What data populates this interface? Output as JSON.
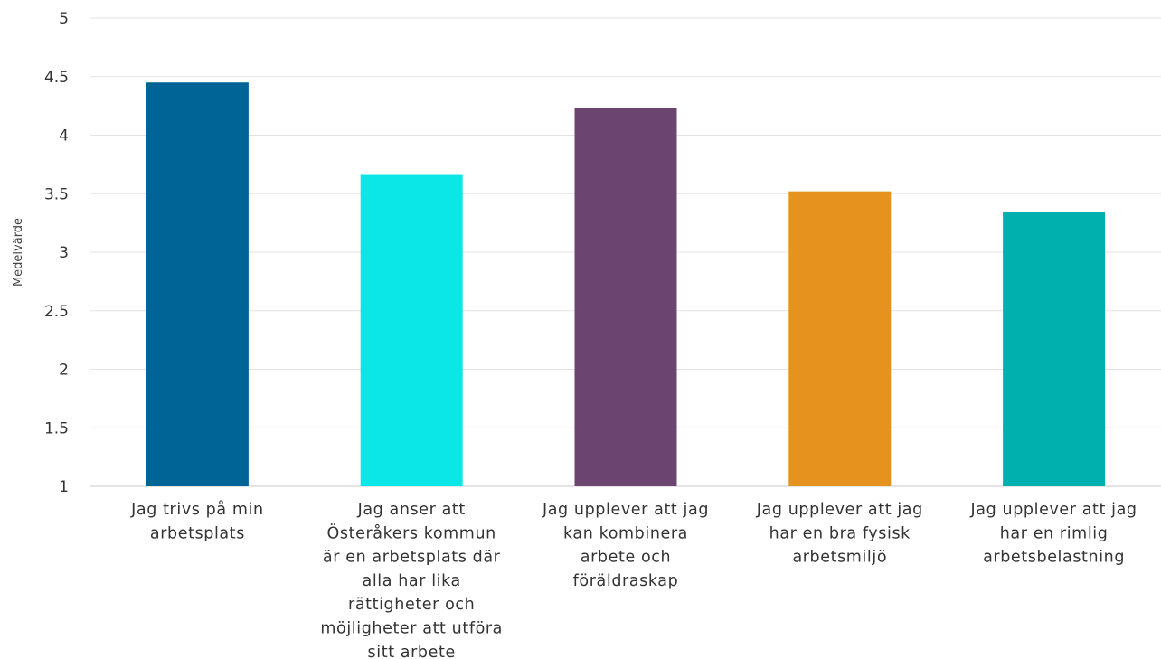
{
  "chart_data": {
    "type": "bar",
    "title": "",
    "xlabel": "",
    "ylabel": "Medelvärde",
    "ylim": [
      1,
      5
    ],
    "yticks": [
      "1",
      "1.5",
      "2",
      "2.5",
      "3",
      "3.5",
      "4",
      "4.5",
      "5"
    ],
    "grid": true,
    "legend": "none",
    "categories": [
      [
        "Jag trivs på min",
        "arbetsplats"
      ],
      [
        "Jag anser att",
        "Österåkers kommun",
        "är en arbetsplats där",
        "alla har lika",
        "rättigheter och",
        "möjligheter att utföra",
        "sitt arbete"
      ],
      [
        "Jag upplever att jag",
        "kan kombinera",
        "arbete och",
        "föräldraskap"
      ],
      [
        "Jag upplever att jag",
        "har en bra fysisk",
        "arbetsmiljö"
      ],
      [
        "Jag upplever att jag",
        "har en rimlig",
        "arbetsbelastning"
      ]
    ],
    "values": [
      4.45,
      3.66,
      4.23,
      3.52,
      3.34
    ],
    "colors": [
      "#006496",
      "#0be6e6",
      "#6b4470",
      "#e5921f",
      "#00b0af"
    ]
  }
}
